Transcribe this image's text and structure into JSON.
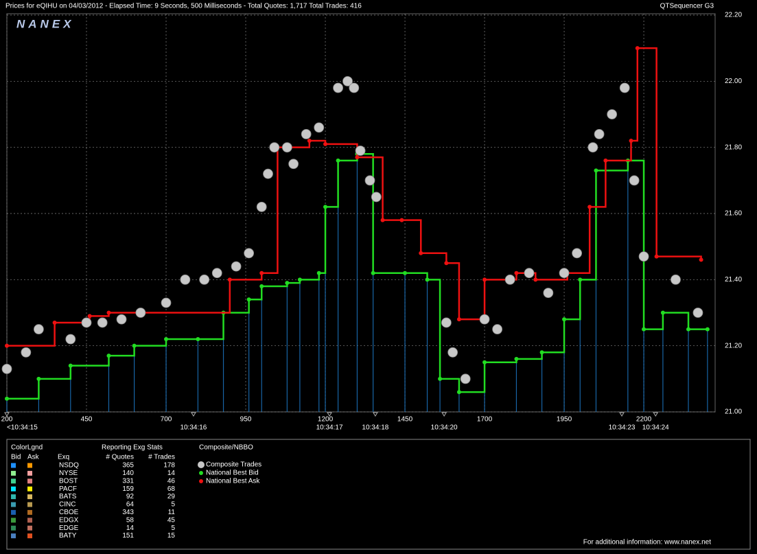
{
  "header": {
    "text": "Prices for  eQIHU  on  04/03/2012  -  Elapsed Time: 9 Seconds, 500 Milliseconds  -  Total Quotes: 1,717  Total Trades: 416",
    "right": "QTSequencer G3"
  },
  "logo": "NANEX",
  "chart_data": {
    "type": "scatter",
    "xlim": [
      200,
      2424
    ],
    "xticks": [
      200,
      450,
      700,
      950,
      1200,
      1450,
      1700,
      1950,
      2200
    ],
    "time_ticks": [
      {
        "value": 200,
        "label": "<10:34:15"
      },
      {
        "value": 786,
        "label": "10:34:16"
      },
      {
        "value": 1213,
        "label": "10:34:17"
      },
      {
        "value": 1357,
        "label": "10:34:18"
      },
      {
        "value": 1573,
        "label": "10:34:20"
      },
      {
        "value": 2131,
        "label": "10:34:23"
      },
      {
        "value": 2237,
        "label": "10:34:24"
      }
    ],
    "ylim": [
      21.0,
      22.2
    ],
    "yticks": [
      {
        "value": 21.0,
        "label": "21.00"
      },
      {
        "value": 21.2,
        "label": "21.20"
      },
      {
        "value": 21.4,
        "label": "21.40"
      },
      {
        "value": 21.6,
        "label": "21.60"
      },
      {
        "value": 21.8,
        "label": "21.80"
      },
      {
        "value": 22.0,
        "label": "22.00"
      },
      {
        "value": 22.2,
        "label": "22.20"
      }
    ],
    "grid": true,
    "legend_title": "Composite/NBBO",
    "series": [
      {
        "name": "Composite Trades",
        "color": "#c8c8c8",
        "x": [
          200,
          260,
          300,
          400,
          450,
          500,
          560,
          620,
          700,
          760,
          820,
          860,
          920,
          960,
          1000,
          1020,
          1040,
          1080,
          1100,
          1140,
          1180,
          1240,
          1270,
          1290,
          1310,
          1340,
          1360,
          1580,
          1600,
          1640,
          1700,
          1740,
          1780,
          1840,
          1900,
          1950,
          1990,
          2040,
          2060,
          2100,
          2140,
          2170,
          2200,
          2300,
          2370
        ],
        "values": [
          21.13,
          21.18,
          21.25,
          21.22,
          21.27,
          21.27,
          21.28,
          21.3,
          21.33,
          21.4,
          21.4,
          21.42,
          21.44,
          21.48,
          21.62,
          21.72,
          21.8,
          21.8,
          21.75,
          21.84,
          21.86,
          21.98,
          22.0,
          21.98,
          21.79,
          21.7,
          21.65,
          21.27,
          21.18,
          21.1,
          21.28,
          21.25,
          21.4,
          21.42,
          21.36,
          21.42,
          21.48,
          21.8,
          21.84,
          21.9,
          21.98,
          21.7,
          21.47,
          21.4,
          21.3
        ]
      },
      {
        "name": "National Best Bid",
        "color": "#22dd22",
        "x": [
          200,
          300,
          400,
          520,
          600,
          700,
          800,
          880,
          960,
          1000,
          1080,
          1120,
          1180,
          1200,
          1240,
          1300,
          1350,
          1450,
          1520,
          1560,
          1620,
          1700,
          1800,
          1880,
          1950,
          2000,
          2050,
          2150,
          2200,
          2260,
          2340,
          2400
        ],
        "values": [
          21.04,
          21.1,
          21.14,
          21.17,
          21.2,
          21.22,
          21.22,
          21.3,
          21.34,
          21.38,
          21.39,
          21.4,
          21.42,
          21.62,
          21.76,
          21.78,
          21.42,
          21.42,
          21.4,
          21.1,
          21.06,
          21.15,
          21.16,
          21.18,
          21.28,
          21.4,
          21.73,
          21.76,
          21.25,
          21.3,
          21.25,
          21.25
        ]
      },
      {
        "name": "National Best Ask",
        "color": "#ee1111",
        "x": [
          200,
          350,
          460,
          520,
          900,
          1000,
          1050,
          1150,
          1200,
          1300,
          1380,
          1440,
          1500,
          1580,
          1620,
          1700,
          1800,
          1860,
          1960,
          2030,
          2080,
          2160,
          2180,
          2240,
          2380
        ],
        "values": [
          21.2,
          21.27,
          21.29,
          21.3,
          21.4,
          21.42,
          21.8,
          21.82,
          21.81,
          21.77,
          21.58,
          21.58,
          21.48,
          21.45,
          21.28,
          21.4,
          21.42,
          21.4,
          21.42,
          21.62,
          21.76,
          21.82,
          22.1,
          21.47,
          21.46
        ]
      }
    ]
  },
  "exchange_stats": {
    "title": "ColorLgnd",
    "bid_header": "Bid",
    "ask_header": "Ask",
    "exch_header": "Exq",
    "stats_title": "Reporting Exg Stats",
    "quotes_header": "# Quotes",
    "trades_header": "# Trades",
    "rows": [
      {
        "exchange": "NSDQ",
        "quotes": 365,
        "trades": 178,
        "bid_color": "#1e90ff",
        "ask_color": "#ff9900"
      },
      {
        "exchange": "NYSE",
        "quotes": 140,
        "trades": 14,
        "bid_color": "#90ee90",
        "ask_color": "#f4a0a0"
      },
      {
        "exchange": "BOST",
        "quotes": 331,
        "trades": 46,
        "bid_color": "#40d090",
        "ask_color": "#e08080"
      },
      {
        "exchange": "PACF",
        "quotes": 159,
        "trades": 68,
        "bid_color": "#00e5ff",
        "ask_color": "#ffee00"
      },
      {
        "exchange": "BATS",
        "quotes": 92,
        "trades": 29,
        "bid_color": "#30b8b0",
        "ask_color": "#d8b860"
      },
      {
        "exchange": "CINC",
        "quotes": 64,
        "trades": 5,
        "bid_color": "#3a9cb0",
        "ask_color": "#b89a50"
      },
      {
        "exchange": "CBOE",
        "quotes": 343,
        "trades": 11,
        "bid_color": "#1a5fb0",
        "ask_color": "#b06a20"
      },
      {
        "exchange": "EDGX",
        "quotes": 58,
        "trades": 45,
        "bid_color": "#3c9a3c",
        "ask_color": "#b06050"
      },
      {
        "exchange": "EDGE",
        "quotes": 14,
        "trades": 5,
        "bid_color": "#2e8b57",
        "ask_color": "#c07060"
      },
      {
        "exchange": "BATY",
        "quotes": 151,
        "trades": 15,
        "bid_color": "#4a80c0",
        "ask_color": "#e05020"
      }
    ]
  },
  "footer": "For additional information: www.nanex.net"
}
